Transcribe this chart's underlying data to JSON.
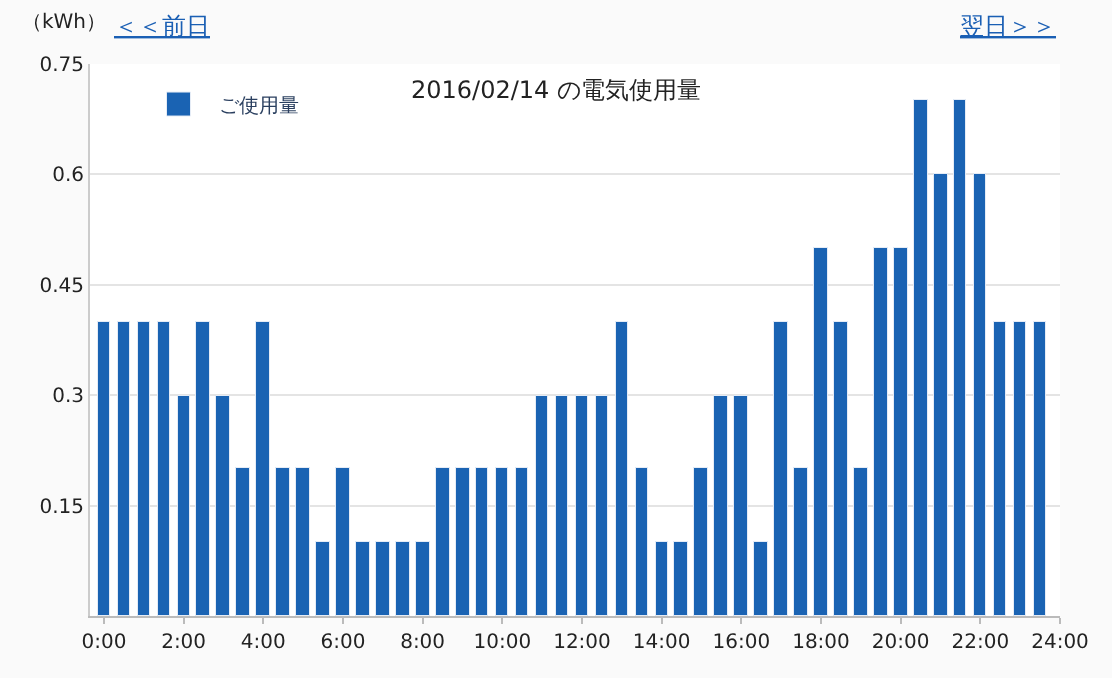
{
  "chart_data": {
    "type": "bar",
    "title": "2016/02/14 の電気使用量",
    "ylabel": "（kWh）",
    "annotations": [
      "＜＜前日",
      "翌日＞＞"
    ],
    "x": [
      0,
      0.5,
      1,
      1.5,
      2,
      2.5,
      3,
      3.5,
      4,
      4.5,
      5,
      5.5,
      6,
      6.5,
      7,
      7.5,
      8,
      8.5,
      9,
      9.5,
      10,
      10.5,
      11,
      11.5,
      12,
      12.5,
      13,
      13.5,
      14,
      14.5,
      15,
      15.5,
      16,
      16.5,
      17,
      17.5,
      18,
      18.5,
      19,
      19.5,
      20,
      20.5,
      21,
      21.5,
      22,
      22.5,
      23,
      23.5
    ],
    "series": [
      {
        "name": "ご使用量",
        "color": "#1a63b3",
        "values": [
          0.4,
          0.4,
          0.4,
          0.4,
          0.3,
          0.4,
          0.3,
          0.2,
          0.4,
          0.2,
          0.2,
          0.1,
          0.2,
          0.1,
          0.1,
          0.1,
          0.1,
          0.2,
          0.2,
          0.2,
          0.2,
          0.2,
          0.3,
          0.3,
          0.3,
          0.3,
          0.4,
          0.2,
          0.1,
          0.1,
          0.2,
          0.3,
          0.3,
          0.1,
          0.4,
          0.2,
          0.5,
          0.4,
          0.2,
          0.5,
          0.5,
          0.7,
          0.6,
          0.7,
          0.6,
          0.4,
          0.4,
          0.4
        ]
      }
    ],
    "xlim": [
      -0.35,
      24
    ],
    "xticks": [
      {
        "value": 0,
        "label": "0:00"
      },
      {
        "value": 2,
        "label": "2:00"
      },
      {
        "value": 4,
        "label": "4:00"
      },
      {
        "value": 6,
        "label": "6:00"
      },
      {
        "value": 8,
        "label": "8:00"
      },
      {
        "value": 10,
        "label": "10:00"
      },
      {
        "value": 12,
        "label": "12:00"
      },
      {
        "value": 14,
        "label": "14:00"
      },
      {
        "value": 16,
        "label": "16:00"
      },
      {
        "value": 18,
        "label": "18:00"
      },
      {
        "value": 20,
        "label": "20:00"
      },
      {
        "value": 22,
        "label": "22:00"
      },
      {
        "value": 24,
        "label": "24:00"
      }
    ],
    "ylim": [
      0,
      0.75
    ],
    "yticks": [
      0.15,
      0.3,
      0.45,
      0.6,
      0.75
    ],
    "grid": "y",
    "legend": "top left"
  }
}
